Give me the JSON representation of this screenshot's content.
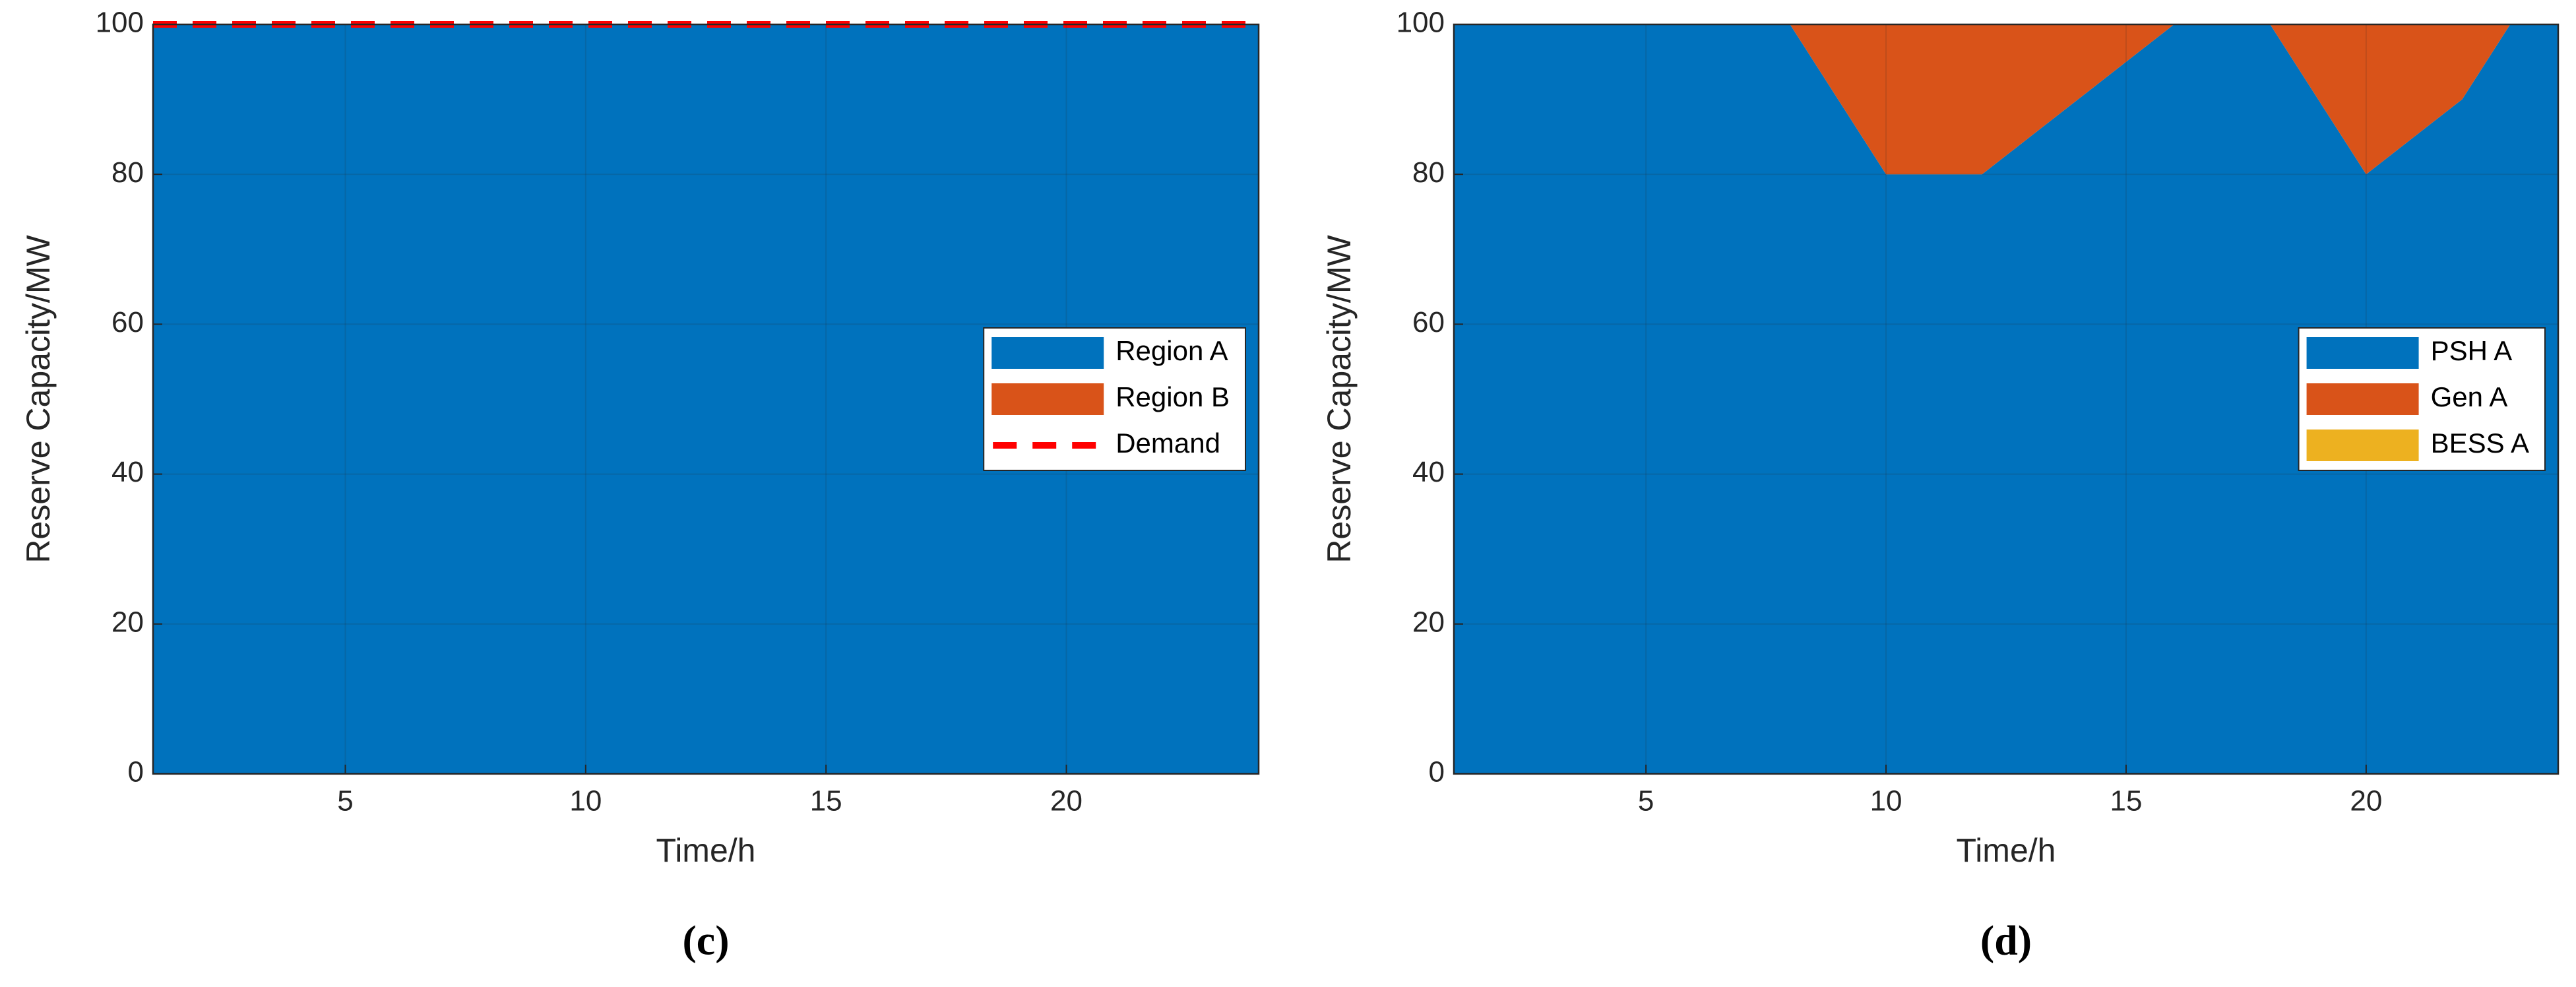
{
  "chart_data": [
    {
      "type": "stacked_area",
      "caption": "(c)",
      "xlabel": "Time/h",
      "ylabel": "Reserve Capacity/MW",
      "x": [
        1,
        2,
        3,
        4,
        5,
        6,
        7,
        8,
        9,
        10,
        11,
        12,
        13,
        14,
        15,
        16,
        17,
        18,
        19,
        20,
        21,
        22,
        23,
        24
      ],
      "xlim": [
        1,
        24
      ],
      "xticks": [
        5,
        10,
        15,
        20
      ],
      "ylim": [
        0,
        100
      ],
      "yticks": [
        0,
        20,
        40,
        60,
        80,
        100
      ],
      "grid": true,
      "legend": "east",
      "series": [
        {
          "name": "Region A",
          "color": "#0072BD",
          "kind": "area",
          "values": [
            100,
            100,
            100,
            100,
            100,
            100,
            100,
            100,
            100,
            100,
            100,
            100,
            100,
            100,
            100,
            100,
            100,
            100,
            100,
            100,
            100,
            100,
            100,
            100
          ]
        },
        {
          "name": "Region B",
          "color": "#D95319",
          "kind": "area",
          "values": [
            0,
            0,
            0,
            0,
            0,
            0,
            0,
            0,
            0,
            0,
            0,
            0,
            0,
            0,
            0,
            0,
            0,
            0,
            0,
            0,
            0,
            0,
            0,
            0
          ]
        },
        {
          "name": "Demand",
          "color": "#FF0000",
          "kind": "dashed_line",
          "values": [
            100,
            100,
            100,
            100,
            100,
            100,
            100,
            100,
            100,
            100,
            100,
            100,
            100,
            100,
            100,
            100,
            100,
            100,
            100,
            100,
            100,
            100,
            100,
            100
          ]
        }
      ]
    },
    {
      "type": "stacked_area",
      "caption": "(d)",
      "xlabel": "Time/h",
      "ylabel": "Reserve Capacity/MW",
      "x": [
        1,
        2,
        3,
        4,
        5,
        6,
        7,
        8,
        9,
        10,
        11,
        12,
        13,
        14,
        15,
        16,
        17,
        18,
        19,
        20,
        21,
        22,
        23,
        24
      ],
      "xlim": [
        1,
        24
      ],
      "xticks": [
        5,
        10,
        15,
        20
      ],
      "ylim": [
        0,
        100
      ],
      "yticks": [
        0,
        20,
        40,
        60,
        80,
        100
      ],
      "grid": true,
      "legend": "east",
      "series": [
        {
          "name": "PSH A",
          "color": "#0072BD",
          "kind": "area",
          "values": [
            100,
            100,
            100,
            100,
            100,
            100,
            100,
            100,
            90,
            80,
            80,
            80,
            85,
            90,
            95,
            100,
            100,
            100,
            90,
            80,
            85,
            90,
            100,
            100
          ]
        },
        {
          "name": "Gen A",
          "color": "#D95319",
          "kind": "area",
          "values": [
            0,
            0,
            0,
            0,
            0,
            0,
            0,
            0,
            10,
            20,
            20,
            20,
            15,
            10,
            5,
            0,
            0,
            0,
            10,
            20,
            15,
            10,
            0,
            0
          ]
        },
        {
          "name": "BESS A",
          "color": "#EDB120",
          "kind": "area",
          "values": [
            0,
            0,
            0,
            0,
            0,
            0,
            0,
            0,
            0,
            0,
            0,
            0,
            0,
            0,
            0,
            0,
            0,
            0,
            0,
            0,
            0,
            0,
            0,
            0
          ]
        }
      ]
    }
  ]
}
